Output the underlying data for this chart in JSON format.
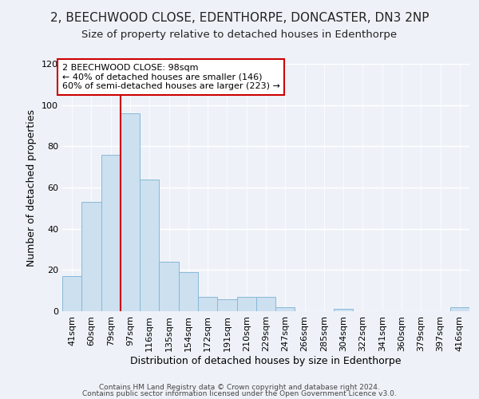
{
  "title": "2, BEECHWOOD CLOSE, EDENTHORPE, DONCASTER, DN3 2NP",
  "subtitle": "Size of property relative to detached houses in Edenthorpe",
  "xlabel": "Distribution of detached houses by size in Edenthorpe",
  "ylabel": "Number of detached properties",
  "categories": [
    "41sqm",
    "60sqm",
    "79sqm",
    "97sqm",
    "116sqm",
    "135sqm",
    "154sqm",
    "172sqm",
    "191sqm",
    "210sqm",
    "229sqm",
    "247sqm",
    "266sqm",
    "285sqm",
    "304sqm",
    "322sqm",
    "341sqm",
    "360sqm",
    "379sqm",
    "397sqm",
    "416sqm"
  ],
  "values": [
    17,
    53,
    76,
    96,
    64,
    24,
    19,
    7,
    6,
    7,
    7,
    2,
    0,
    0,
    1,
    0,
    0,
    0,
    0,
    0,
    2
  ],
  "bar_color": "#cce0f0",
  "bar_edge_color": "#88b8d8",
  "bg_color": "#eef2f8",
  "grid_color": "#ffffff",
  "red_line_x": 3.0,
  "annotation_box_text": [
    "2 BEECHWOOD CLOSE: 98sqm",
    "← 40% of detached houses are smaller (146)",
    "60% of semi-detached houses are larger (223) →"
  ],
  "annotation_box_color": "#ffffff",
  "annotation_box_edge_color": "#cc0000",
  "red_line_color": "#cc0000",
  "ylim": [
    0,
    120
  ],
  "yticks": [
    0,
    20,
    40,
    60,
    80,
    100,
    120
  ],
  "title_fontsize": 11,
  "subtitle_fontsize": 9.5,
  "xlabel_fontsize": 9,
  "ylabel_fontsize": 9,
  "tick_fontsize": 8,
  "footer_line1": "Contains HM Land Registry data © Crown copyright and database right 2024.",
  "footer_line2": "Contains public sector information licensed under the Open Government Licence v3.0."
}
